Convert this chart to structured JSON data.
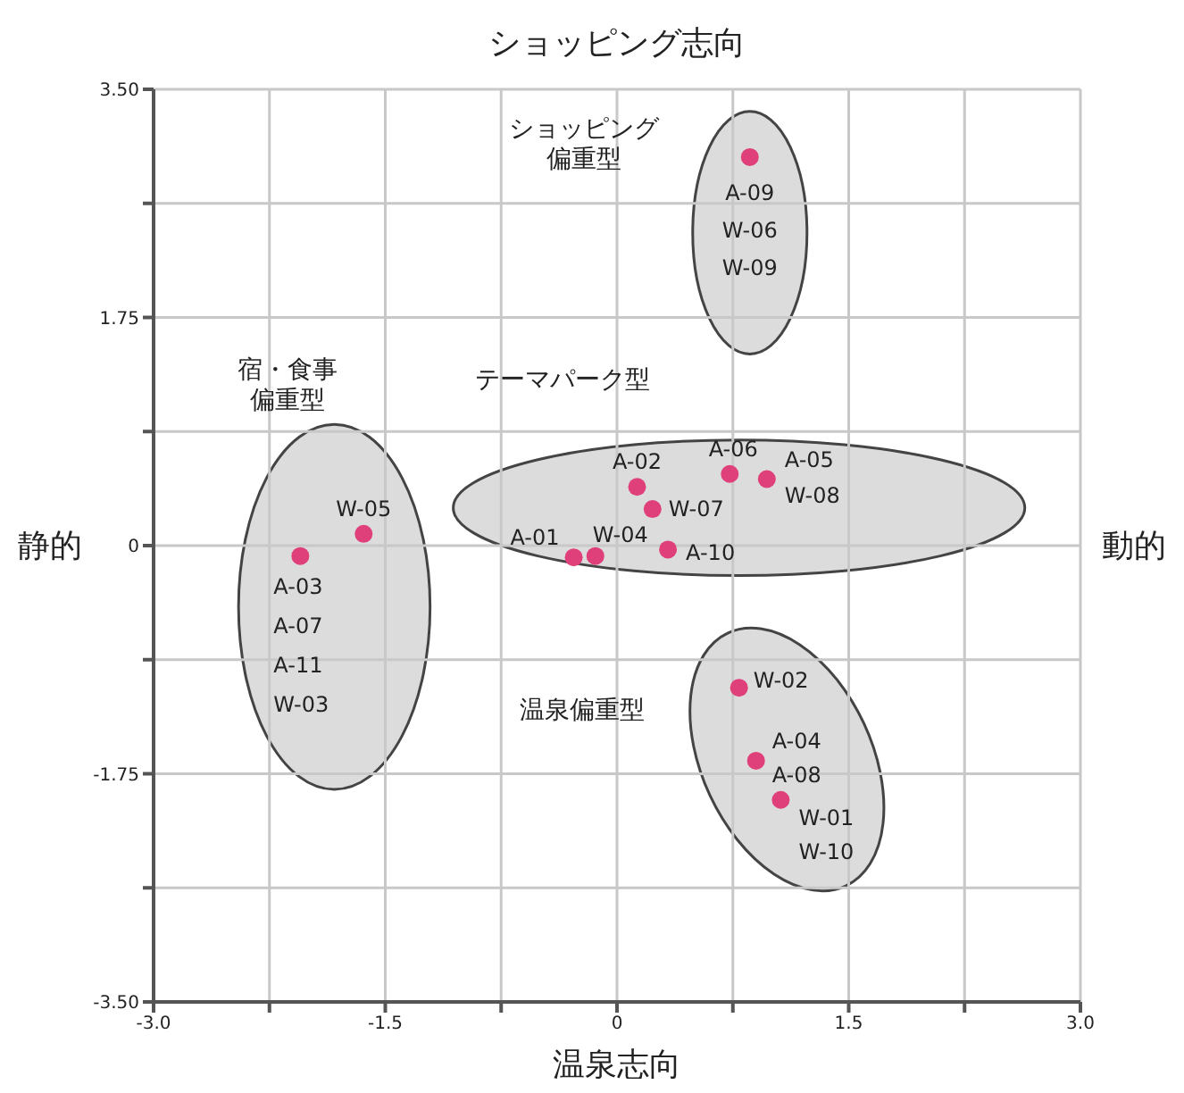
{
  "chart_data": {
    "type": "scatter",
    "title": "ショッピング志向",
    "xlabel": "温泉志向",
    "ylabel": "静的",
    "y2label": "動的",
    "x": [
      0.86,
      -1.64,
      -2.05,
      0.13,
      0.23,
      0.73,
      0.97,
      -0.28,
      -0.14,
      0.33,
      0.79,
      0.9,
      1.06
    ],
    "values": [
      2.98,
      0.09,
      -0.08,
      0.45,
      0.28,
      0.55,
      0.51,
      -0.09,
      -0.08,
      -0.03,
      -1.09,
      -1.65,
      -1.95
    ],
    "color": "#e0407a",
    "marker": "circle",
    "grid": true,
    "xlim": [
      -3,
      3
    ],
    "ylim": [
      -3.5,
      3.5
    ],
    "xticks": [
      {
        "value": -3,
        "label": "-3.0"
      },
      {
        "value": -2.25,
        "label": null
      },
      1.5,
      {
        "value": -1.5,
        "label": "-1.5"
      },
      {
        "value": -0.75,
        "label": null
      },
      0,
      {
        "value": 0.75,
        "label": null
      },
      {
        "value": 2.25,
        "label": null
      },
      {
        "value": 3,
        "label": "3.0"
      }
    ],
    "yticks": [
      {
        "value": -3.5,
        "label": "-3.50"
      },
      {
        "value": -2.625,
        "label": null
      },
      -1.75,
      {
        "value": -0.875,
        "label": null
      },
      0,
      {
        "value": 0.875,
        "label": null
      },
      1.75,
      {
        "value": 2.625,
        "label": null
      },
      {
        "value": 3.5,
        "label": "3.50"
      }
    ],
    "annotations": [
      {
        "text": "A-09\nW-06\nW-09",
        "x": 0.86,
        "y": 2.98
      },
      {
        "text": "W-05",
        "x": -1.64,
        "y": 0.09
      },
      {
        "text": "A-03\nA-07\nA-11\nW-03",
        "x": -2.05,
        "y": -0.08
      },
      {
        "text": "A-02",
        "x": 0.13,
        "y": 0.45
      },
      {
        "text": "W-07",
        "x": 0.23,
        "y": 0.28
      },
      {
        "text": "A-06",
        "x": 0.73,
        "y": 0.55
      },
      {
        "text": "A-05\nW-08",
        "x": 0.97,
        "y": 0.51
      },
      {
        "text": "A-01",
        "x": -0.28,
        "y": -0.09
      },
      {
        "text": "W-04",
        "x": -0.14,
        "y": -0.08
      },
      {
        "text": "A-10",
        "x": 0.33,
        "y": -0.03
      },
      {
        "text": "W-02",
        "x": 0.79,
        "y": -1.09
      },
      {
        "text": "A-04\nA-08",
        "x": 0.9,
        "y": -1.65
      },
      {
        "text": "W-01\nW-10",
        "x": 1.06,
        "y": -1.95
      },
      "ショッピング偏重型",
      "宿・食事偏重型",
      "テーマパーク型",
      "温泉偏重型"
    ]
  }
}
